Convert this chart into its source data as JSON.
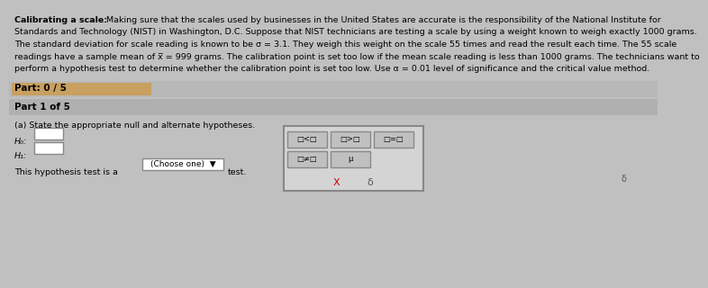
{
  "bg_color": "#c0c0c0",
  "text_color": "#000000",
  "title_bold": "Calibrating a scale:",
  "paragraph_lines": [
    "Making sure that the scales used by businesses in the United States are accurate is the responsibility of the National Institute for",
    "Standards and Technology (NIST) in Washington, D.C. Suppose that NIST technicians are testing a scale by using a weight known to weigh exactly 1000 grams.",
    "The standard deviation for scale reading is known to be σ = 3.1. They weigh this weight on the scale 55 times and read the result each time. The 55 scale",
    "readings have a sample mean of x̅ = 999 grams. The calibration point is set too low if the mean scale reading is less than 1000 grams. The technicians want to",
    "perform a hypothesis test to determine whether the calibration point is set too low. Use α = 0.01 level of significance and the critical value method."
  ],
  "part_label": "Part: 0 / 5",
  "part_bar_color": "#b8b8b8",
  "progress_color": "#c8a060",
  "part1_label": "Part 1 of 5",
  "part1_bar_color": "#b0b0b0",
  "part_a_label": "(a) State the appropriate null and alternate hypotheses.",
  "h0_label": "H₀:",
  "h1_label": "H₁:",
  "hypothesis_line": "This hypothesis test is a",
  "choose_one": "(Choose one)  ▼",
  "test_label": "test.",
  "popup_bg": "#d0d0d0",
  "popup_border": "#888888",
  "btn_row1": [
    "□<□",
    "□>□",
    "□=□"
  ],
  "btn_row2": [
    "□≠□",
    "μ"
  ],
  "x_label": "X",
  "check_label": "δ",
  "fs_body": 6.8,
  "fs_small": 6.5,
  "fs_part": 7.5,
  "fs_btn": 6.0
}
